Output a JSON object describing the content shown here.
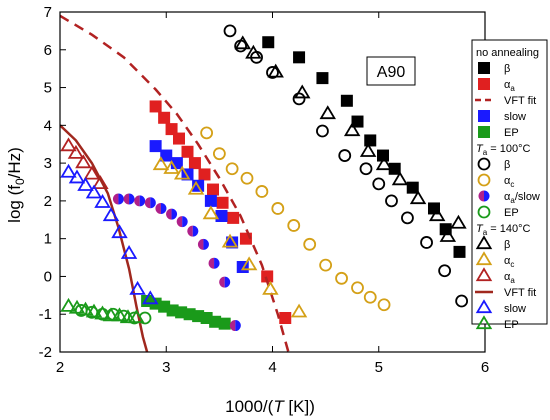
{
  "chart_data": {
    "type": "scatter",
    "title": "",
    "annotation": "A90",
    "xlabel_prefix": "1000/(",
    "xlabel_italic": "T",
    "xlabel_suffix": " [K])",
    "ylabel": "log (f",
    "ylabel_sub": "0",
    "ylabel_end": "/Hz)",
    "xlim": [
      2,
      6
    ],
    "ylim": [
      -2,
      7
    ],
    "xticks": [
      2,
      3,
      4,
      5,
      6
    ],
    "yticks": [
      -2,
      -1,
      0,
      1,
      2,
      3,
      4,
      5,
      6,
      7
    ],
    "legend": {
      "placement": "right",
      "group1_title": "no annealing",
      "group2_title_pre": "T",
      "group2_title_sub": "a",
      "group2_title_post": " = 100°C",
      "group3_title_pre": "T",
      "group3_title_sub": "a",
      "group3_title_post": " = 140°C"
    },
    "series": [
      {
        "name": "β",
        "group": 1,
        "marker": "square",
        "fill": "#000000",
        "color": "#000000",
        "x": [
          3.96,
          4.25,
          4.47,
          4.7,
          4.8,
          4.92,
          5.04,
          5.15,
          5.32,
          5.52,
          5.63,
          5.76
        ],
        "y": [
          6.2,
          5.8,
          5.25,
          4.65,
          4.1,
          3.6,
          3.2,
          2.85,
          2.35,
          1.8,
          1.25,
          0.65
        ]
      },
      {
        "name": "α",
        "name_sub": "a",
        "group": 1,
        "marker": "square",
        "fill": "#e02020",
        "color": "#e02020",
        "x": [
          2.9,
          2.98,
          3.05,
          3.12,
          3.2,
          3.27,
          3.36,
          3.44,
          3.53,
          3.63,
          3.75,
          3.95,
          4.12
        ],
        "y": [
          4.5,
          4.2,
          3.9,
          3.65,
          3.3,
          3.0,
          2.7,
          2.3,
          1.95,
          1.55,
          1.0,
          0.0,
          -1.1
        ]
      },
      {
        "name": "VFT fit",
        "group": 1,
        "marker": "dashline",
        "color": "#b22222",
        "x": [
          2.0,
          2.3,
          2.6,
          2.9,
          3.1,
          3.3,
          3.5,
          3.7,
          3.9,
          4.05,
          4.15
        ],
        "y": [
          6.9,
          6.4,
          5.8,
          4.95,
          4.3,
          3.5,
          2.6,
          1.6,
          0.3,
          -1.0,
          -2.0
        ]
      },
      {
        "name": "slow",
        "group": 1,
        "marker": "square",
        "fill": "#1a1aff",
        "color": "#1a1aff",
        "x": [
          2.9,
          3.0,
          3.1,
          3.2,
          3.3,
          3.42,
          3.52,
          3.62,
          3.72
        ],
        "y": [
          3.45,
          3.2,
          3.0,
          2.7,
          2.4,
          2.0,
          1.6,
          0.9,
          0.25
        ]
      },
      {
        "name": "EP",
        "group": 1,
        "marker": "square",
        "fill": "#1a9a1a",
        "color": "#1a9a1a",
        "x": [
          2.82,
          2.9,
          2.98,
          3.06,
          3.14,
          3.22,
          3.3,
          3.38,
          3.46,
          3.55
        ],
        "y": [
          -0.65,
          -0.72,
          -0.8,
          -0.9,
          -0.95,
          -1.0,
          -1.05,
          -1.1,
          -1.2,
          -1.25
        ]
      },
      {
        "name": "β",
        "group": 2,
        "marker": "circle",
        "fill": "none",
        "color": "#000000",
        "x": [
          3.6,
          3.7,
          3.85,
          4.0,
          4.25,
          4.47,
          4.68,
          4.88,
          5.0,
          5.12,
          5.27,
          5.45,
          5.62,
          5.78
        ],
        "y": [
          6.5,
          6.1,
          5.8,
          5.4,
          4.7,
          3.85,
          3.2,
          2.85,
          2.45,
          2.0,
          1.55,
          0.9,
          0.15,
          -0.65
        ]
      },
      {
        "name": "α",
        "name_sub": "c",
        "group": 2,
        "marker": "circle",
        "fill": "none",
        "color": "#d4a017",
        "x": [
          3.38,
          3.5,
          3.62,
          3.76,
          3.9,
          4.05,
          4.2,
          4.35,
          4.5,
          4.65,
          4.8,
          4.92,
          5.05
        ],
        "y": [
          3.8,
          3.25,
          2.85,
          2.6,
          2.25,
          1.8,
          1.35,
          0.85,
          0.3,
          -0.05,
          -0.3,
          -0.55,
          -0.75
        ]
      },
      {
        "name": "α",
        "name_sub": "a",
        "name_post": "/slow",
        "group": 2,
        "marker": "halfcircle",
        "fill": "#8a2be2",
        "color": "#1a1aff",
        "x": [
          2.55,
          2.65,
          2.75,
          2.85,
          2.95,
          3.05,
          3.15,
          3.25,
          3.35,
          3.45,
          3.55,
          3.65
        ],
        "y": [
          2.05,
          2.05,
          2.0,
          1.95,
          1.8,
          1.65,
          1.45,
          1.2,
          0.85,
          0.35,
          -0.15,
          -1.3
        ]
      },
      {
        "name": "EP",
        "group": 2,
        "marker": "circle",
        "fill": "none",
        "color": "#1a9a1a",
        "x": [
          2.2,
          2.3,
          2.4,
          2.5,
          2.6,
          2.7,
          2.8
        ],
        "y": [
          -0.9,
          -0.95,
          -1.0,
          -1.0,
          -1.05,
          -1.1,
          -1.1
        ]
      },
      {
        "name": "β",
        "group": 3,
        "marker": "triangle",
        "fill": "none",
        "color": "#000000",
        "x": [
          3.72,
          3.82,
          4.03,
          4.28,
          4.52,
          4.75,
          4.9,
          5.05,
          5.2,
          5.37,
          5.55,
          5.65,
          5.75
        ],
        "y": [
          6.15,
          5.9,
          5.4,
          4.85,
          4.3,
          3.85,
          3.3,
          2.95,
          2.55,
          2.05,
          1.6,
          1.05,
          1.4
        ]
      },
      {
        "name": "α",
        "name_sub": "c",
        "group": 3,
        "marker": "triangle",
        "fill": "none",
        "color": "#d4a017",
        "x": [
          2.95,
          3.05,
          3.15,
          3.28,
          3.42,
          3.6,
          3.78,
          3.98,
          4.25
        ],
        "y": [
          2.95,
          2.85,
          2.7,
          2.3,
          1.65,
          0.9,
          0.3,
          -0.35,
          -0.95
        ]
      },
      {
        "name": "α",
        "name_sub": "a",
        "group": 3,
        "marker": "triangle",
        "fill": "none",
        "color": "#b22222",
        "x": [
          2.08,
          2.15,
          2.22,
          2.3,
          2.38
        ],
        "y": [
          3.45,
          3.25,
          3.0,
          2.7,
          2.45
        ]
      },
      {
        "name": "VFT fit",
        "group": 3,
        "marker": "line",
        "color": "#a0281e",
        "x": [
          2.0,
          2.15,
          2.3,
          2.45,
          2.55,
          2.65,
          2.72,
          2.78,
          2.82
        ],
        "y": [
          4.0,
          3.6,
          3.0,
          2.2,
          1.3,
          0.2,
          -0.8,
          -1.6,
          -2.0
        ]
      },
      {
        "name": "slow",
        "group": 3,
        "marker": "triangle",
        "fill": "none",
        "color": "#1a1aff",
        "x": [
          2.08,
          2.16,
          2.24,
          2.32,
          2.4,
          2.48,
          2.56,
          2.65,
          2.73,
          2.85
        ],
        "y": [
          2.75,
          2.6,
          2.4,
          2.2,
          1.95,
          1.6,
          1.15,
          0.6,
          -0.35,
          -0.6
        ]
      },
      {
        "name": "EP",
        "group": 3,
        "marker": "triangle",
        "fill": "none",
        "color": "#1a9a1a",
        "x": [
          2.08,
          2.16,
          2.24,
          2.32,
          2.4,
          2.48,
          2.56,
          2.64,
          2.72
        ],
        "y": [
          -0.8,
          -0.85,
          -0.9,
          -0.95,
          -1.0,
          -1.05,
          -1.05,
          -1.1,
          -1.1
        ]
      }
    ]
  }
}
